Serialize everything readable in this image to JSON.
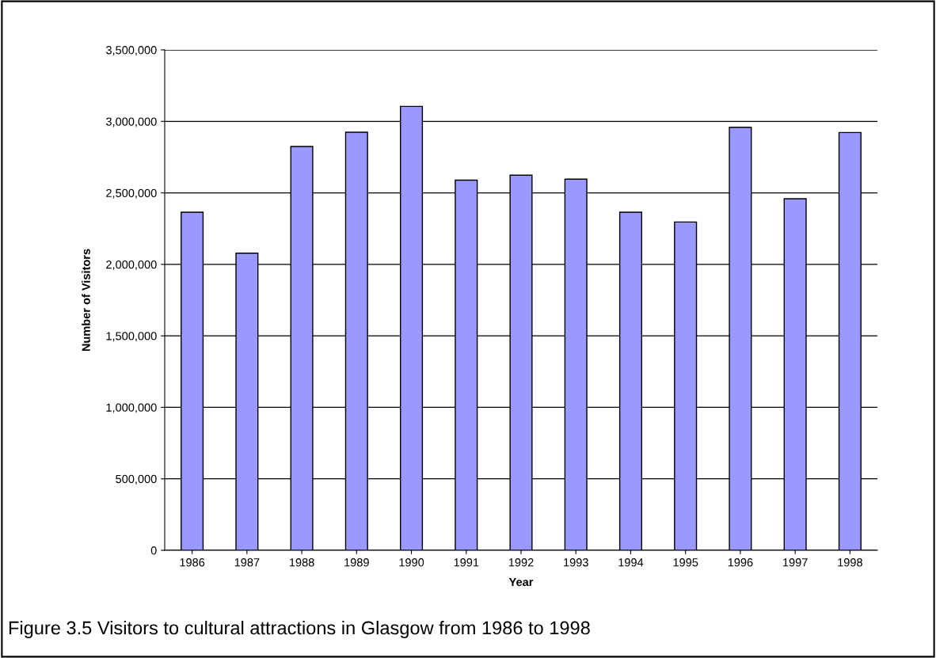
{
  "chart_data": {
    "type": "bar",
    "xlabel": "Year",
    "ylabel": "Number of Visitors",
    "categories": [
      "1986",
      "1987",
      "1988",
      "1989",
      "1990",
      "1991",
      "1992",
      "1993",
      "1994",
      "1995",
      "1996",
      "1997",
      "1998"
    ],
    "values": [
      2365000,
      2078000,
      2824000,
      2924000,
      3105000,
      2589000,
      2624000,
      2596000,
      2365000,
      2296000,
      2959000,
      2459000,
      2922000
    ],
    "color": "#9999ff",
    "ylim": [
      0,
      3500000
    ],
    "yticks": [
      {
        "value": 0,
        "label": "0"
      },
      {
        "value": 500000,
        "label": "500,000"
      },
      {
        "value": 1000000,
        "label": "1,000,000"
      },
      {
        "value": 1500000,
        "label": "1,500,000"
      },
      {
        "value": 2000000,
        "label": "2,000,000"
      },
      {
        "value": 2500000,
        "label": "2,500,000"
      },
      {
        "value": 3000000,
        "label": "3,000,000"
      },
      {
        "value": 3500000,
        "label": "3,500,000"
      }
    ],
    "grid": "y",
    "annotations": [
      "Figure 3.5 Visitors to cultural attractions in Glasgow from 1986 to 1998"
    ]
  }
}
